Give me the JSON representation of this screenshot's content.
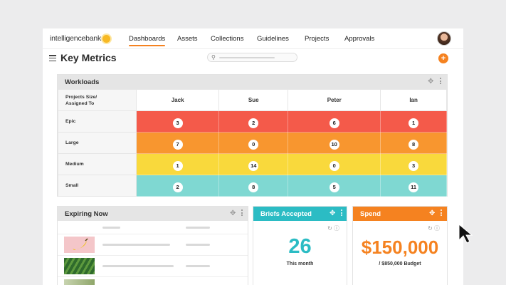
{
  "brand": {
    "logo_text": "intelligencebank",
    "accent": "#f58220"
  },
  "nav": {
    "items": [
      "Dashboards",
      "Assets",
      "Collections",
      "Guidelines",
      "Projects",
      "Approvals"
    ],
    "active": "Dashboards"
  },
  "header": {
    "title": "Key Metrics",
    "add_symbol": "+"
  },
  "workloads": {
    "title": "Workloads",
    "corner_label_1": "Projects Size/",
    "corner_label_2": "Assigned To",
    "people": [
      "Jack",
      "Sue",
      "Peter",
      "Ian"
    ],
    "rows": [
      {
        "size": "Epic",
        "color": "#f45a4a",
        "values": [
          "3",
          "2",
          "6",
          "1"
        ]
      },
      {
        "size": "Large",
        "color": "#f8962f",
        "values": [
          "7",
          "0",
          "10",
          "8"
        ]
      },
      {
        "size": "Medium",
        "color": "#f9d93c",
        "values": [
          "1",
          "14",
          "0",
          "3"
        ]
      },
      {
        "size": "Small",
        "color": "#7fd8d2",
        "values": [
          "2",
          "8",
          "5",
          "11"
        ]
      }
    ]
  },
  "expiring": {
    "title": "Expiring Now",
    "thumb_icons": [
      "banana-image",
      "leaf-image",
      "tree-image"
    ]
  },
  "briefs": {
    "title": "Briefs Accepted",
    "value": "26",
    "caption": "This month",
    "color": "#2bbcc4"
  },
  "spend": {
    "title": "Spend",
    "value": "$150,000",
    "caption": "/ $850,000 Budget",
    "color": "#f58220"
  },
  "icons": {
    "move": "move-icon",
    "more": "kebab-icon",
    "refresh": "refresh-icon",
    "info": "info-icon",
    "search": "search-icon"
  }
}
